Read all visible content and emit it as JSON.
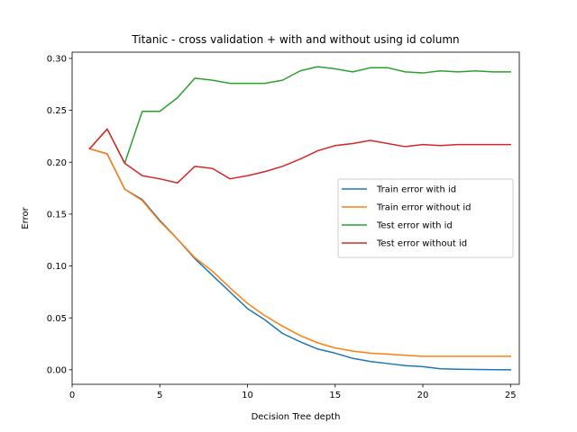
{
  "chart_data": {
    "type": "line",
    "title": "Titanic - cross validation + with and without using id column",
    "xlabel": "Decision Tree depth",
    "ylabel": "Error",
    "xlim": [
      0,
      25.5
    ],
    "ylim": [
      -0.014,
      0.306
    ],
    "x_ticks": [
      0,
      5,
      10,
      15,
      20,
      25
    ],
    "y_ticks": [
      0.0,
      0.05,
      0.1,
      0.15,
      0.2,
      0.25,
      0.3
    ],
    "y_tick_labels": [
      "0.00",
      "0.05",
      "0.10",
      "0.15",
      "0.20",
      "0.25",
      "0.30"
    ],
    "grid": false,
    "legend_position": "center-right",
    "x": [
      1,
      2,
      3,
      4,
      5,
      6,
      7,
      8,
      9,
      10,
      11,
      12,
      13,
      14,
      15,
      16,
      17,
      18,
      19,
      20,
      21,
      22,
      23,
      24,
      25
    ],
    "series": [
      {
        "name": "Train error with id",
        "color": "#1f77b4",
        "values": [
          0.213,
          0.208,
          0.174,
          0.164,
          0.144,
          0.126,
          0.107,
          0.091,
          0.075,
          0.059,
          0.048,
          0.035,
          0.027,
          0.02,
          0.016,
          0.011,
          0.008,
          0.006,
          0.004,
          0.003,
          0.001,
          0.0005,
          0.0003,
          0.0001,
          0.0
        ]
      },
      {
        "name": "Train error without id",
        "color": "#ff7f0e",
        "values": [
          0.213,
          0.208,
          0.174,
          0.163,
          0.143,
          0.126,
          0.108,
          0.095,
          0.079,
          0.064,
          0.052,
          0.042,
          0.033,
          0.026,
          0.021,
          0.018,
          0.016,
          0.015,
          0.014,
          0.013,
          0.013,
          0.013,
          0.013,
          0.013,
          0.013
        ]
      },
      {
        "name": "Test error with id",
        "color": "#2ca02c",
        "values": [
          0.213,
          0.232,
          0.199,
          0.249,
          0.249,
          0.262,
          0.281,
          0.279,
          0.276,
          0.276,
          0.276,
          0.279,
          0.288,
          0.292,
          0.29,
          0.287,
          0.291,
          0.291,
          0.287,
          0.286,
          0.288,
          0.287,
          0.288,
          0.287,
          0.287
        ]
      },
      {
        "name": "Test error without id",
        "color": "#d62728",
        "values": [
          0.213,
          0.232,
          0.199,
          0.187,
          0.184,
          0.18,
          0.196,
          0.194,
          0.184,
          0.187,
          0.191,
          0.196,
          0.203,
          0.211,
          0.216,
          0.218,
          0.221,
          0.218,
          0.215,
          0.217,
          0.216,
          0.217,
          0.217,
          0.217,
          0.217
        ]
      }
    ]
  }
}
